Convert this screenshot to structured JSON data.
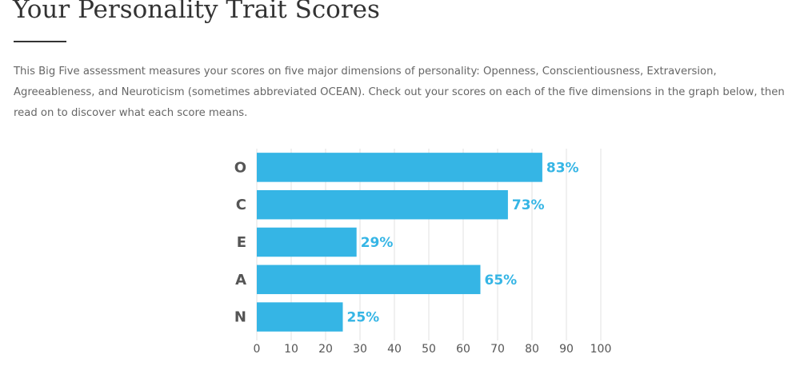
{
  "page": {
    "title": "Your Personality Trait Scores",
    "intro": "This Big Five assessment measures your scores on five major dimensions of personality: Openness, Conscientiousness, Extraversion, Agreeableness, and Neuroticism (sometimes abbreviated OCEAN). Check out your scores on each of the five dimensions in the graph below, then read on to discover what each score means."
  },
  "chart_data": {
    "type": "bar",
    "orientation": "horizontal",
    "categories": [
      "O",
      "C",
      "E",
      "A",
      "N"
    ],
    "values": [
      83,
      73,
      29,
      65,
      25
    ],
    "value_labels": [
      "83%",
      "73%",
      "29%",
      "65%",
      "25%"
    ],
    "color": "#35b5e5",
    "xlim": [
      0,
      100
    ],
    "xticks": [
      0,
      10,
      20,
      30,
      40,
      50,
      60,
      70,
      80,
      90,
      100
    ],
    "grid": true
  }
}
